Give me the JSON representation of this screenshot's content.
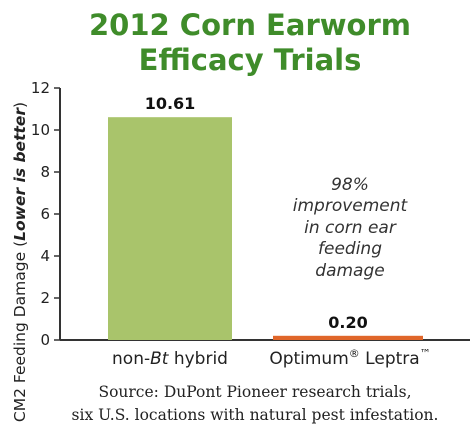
{
  "chart_data": {
    "type": "bar",
    "title_lines": [
      "2012 Corn Earworm",
      "Efficacy Trials"
    ],
    "ylabel_prefix": "CM2 Feeding Damage (",
    "ylabel_italic": "Lower is better",
    "ylabel_suffix": ")",
    "categories": [
      {
        "pre": "non-",
        "ital": "Bt",
        "post": " hybrid",
        "sup": ""
      },
      {
        "pre": "Optimum",
        "ital": "",
        "post": " Leptra",
        "sup": "®",
        "tm": "™"
      }
    ],
    "values": [
      10.61,
      0.2
    ],
    "value_labels": [
      "10.61",
      "0.20"
    ],
    "bar_colors": [
      "#a9c46b",
      "#e0662a"
    ],
    "ylim": [
      0,
      12
    ],
    "yticks": [
      "0",
      "2",
      "4",
      "6",
      "8",
      "10",
      "12"
    ],
    "annotation_lines": [
      "98%",
      "improvement",
      "in corn ear",
      "feeding",
      "damage"
    ],
    "source_lines": [
      "Source: DuPont Pioneer research trials,",
      "six U.S. locations with natural pest infestation."
    ],
    "title_color": "#3f8c2a",
    "grid": false
  }
}
